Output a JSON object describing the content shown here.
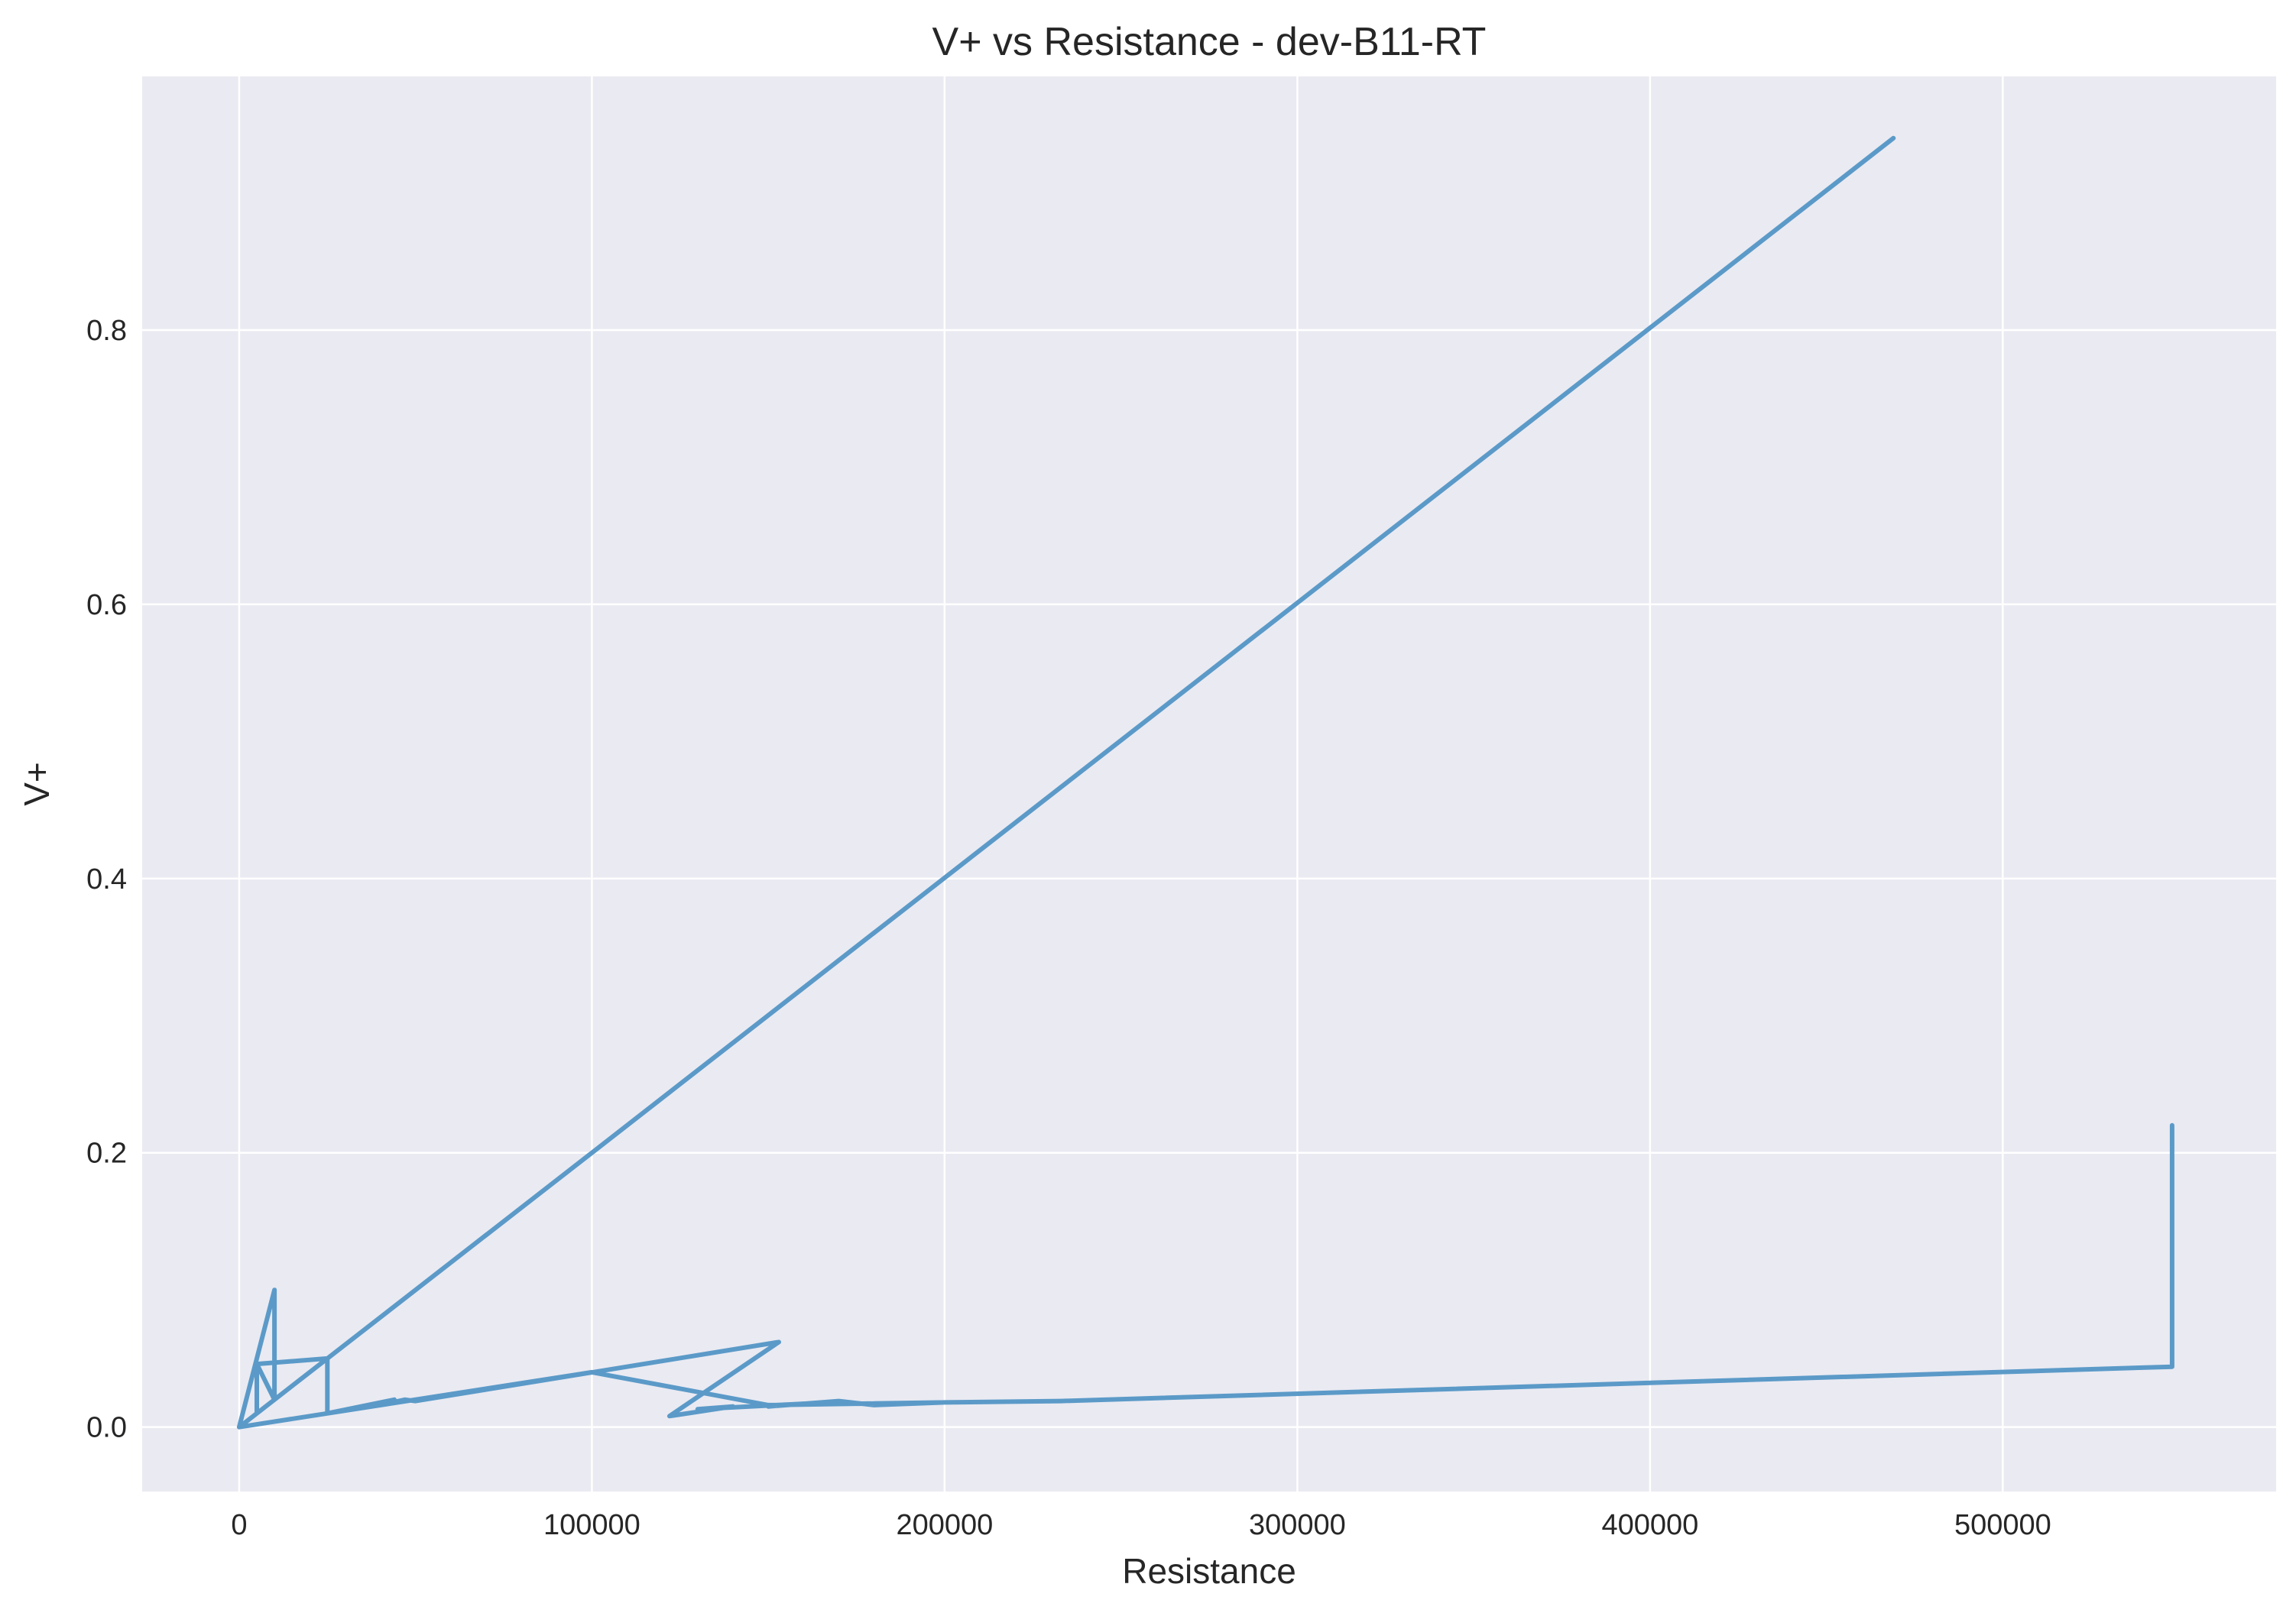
{
  "chart_data": {
    "type": "line",
    "title": "V+ vs Resistance - dev-B11-RT",
    "xlabel": "Resistance",
    "ylabel": "V+",
    "xlim": [
      -27500,
      577500
    ],
    "ylim": [
      -0.047,
      0.985
    ],
    "xticks": [
      0,
      100000,
      200000,
      300000,
      400000,
      500000
    ],
    "yticks": [
      0.0,
      0.2,
      0.4,
      0.6,
      0.8
    ],
    "xtick_labels": [
      "0",
      "100000",
      "200000",
      "300000",
      "400000",
      "500000"
    ],
    "ytick_labels": [
      "0.0",
      "0.2",
      "0.4",
      "0.6",
      "0.8"
    ],
    "grid": true,
    "background_color": "#eaeaf2",
    "series": [
      {
        "color": "#5b9ac8",
        "x": [
          0,
          10000,
          10000,
          5000,
          5000,
          5000,
          25000,
          25000,
          44000,
          40000,
          47000,
          50000,
          153000,
          122000,
          140000,
          130000,
          160000,
          150000,
          170000,
          180000,
          200000,
          233000,
          548000,
          548000,
          548000,
          233000,
          200000,
          150000,
          100000,
          0,
          100000,
          469000
        ],
        "y": [
          0.0,
          0.1,
          0.02,
          0.046,
          0.01,
          0.046,
          0.05,
          0.01,
          0.02,
          0.016,
          0.02,
          0.019,
          0.062,
          0.008,
          0.015,
          0.013,
          0.017,
          0.015,
          0.019,
          0.016,
          0.018,
          0.019,
          0.044,
          0.22,
          0.044,
          0.019,
          0.018,
          0.016,
          0.04,
          0.0,
          0.2,
          0.94
        ]
      }
    ]
  }
}
